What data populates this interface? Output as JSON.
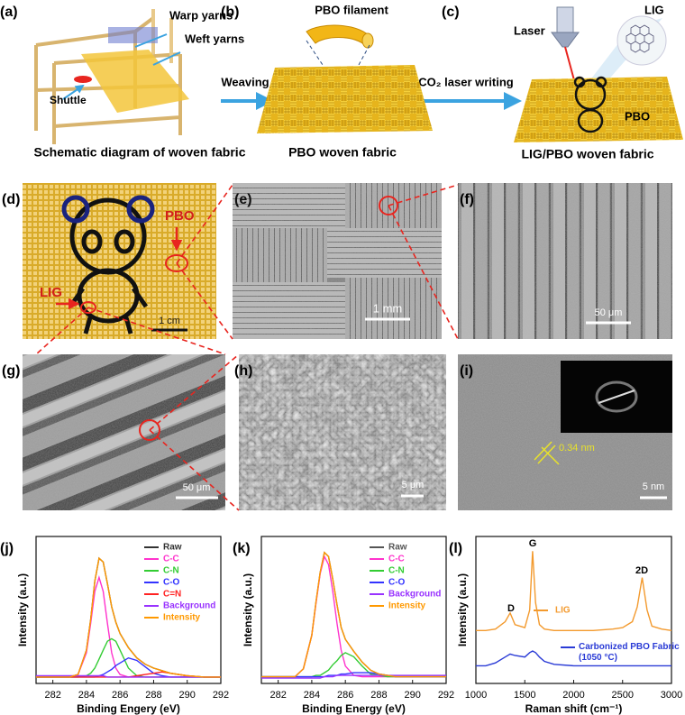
{
  "figure": {
    "a": {
      "label": "(a)",
      "warp": "Warp yarns",
      "weft": "Weft yarns",
      "shuttle": "Shuttle",
      "caption": "Schematic diagram of woven fabric"
    },
    "weaving": "Weaving",
    "b": {
      "label": "(b)",
      "filament": "PBO filament",
      "caption": "PBO woven fabric"
    },
    "laser_writing": "CO₂ laser writing",
    "c": {
      "label": "(c)",
      "laser": "Laser",
      "lig": "LIG",
      "pbo": "PBO",
      "caption": "LIG/PBO woven fabric"
    },
    "d": {
      "label": "(d)",
      "pbo": "PBO",
      "lig": "LIG",
      "scale": "1 cm"
    },
    "e": {
      "label": "(e)",
      "scale": "1 mm"
    },
    "f": {
      "label": "(f)",
      "scale": "50 μm"
    },
    "g": {
      "label": "(g)",
      "scale": "50 μm"
    },
    "h": {
      "label": "(h)",
      "scale": "5 μm"
    },
    "i": {
      "label": "(i)",
      "spacing": "0.34 nm",
      "scale": "5 nm"
    }
  },
  "chart_data": [
    {
      "type": "line",
      "label": "(j)",
      "xlabel": "Binding Engery (eV)",
      "ylabel": "Intensity (a.u.)",
      "legend": "upper right",
      "x": [
        281,
        282,
        283,
        283.5,
        284,
        284.25,
        284.5,
        284.75,
        285,
        285.25,
        285.5,
        285.75,
        286,
        286.5,
        287,
        287.5,
        288,
        288.5,
        289,
        290,
        291,
        292
      ],
      "xlim": [
        281,
        292
      ],
      "xticks": [
        282,
        284,
        286,
        288,
        290,
        292
      ],
      "ylim": [
        0,
        115
      ],
      "series": [
        {
          "name": "Raw",
          "color": "#333333",
          "values": [
            5,
            5,
            5,
            7,
            26,
            50,
            80,
            98,
            95,
            78,
            60,
            48,
            39,
            28,
            20,
            15,
            12,
            10,
            8,
            6,
            5,
            5
          ]
        },
        {
          "name": "C-C",
          "color": "#ff33cc",
          "values": [
            5,
            5,
            5,
            7,
            24,
            47,
            72,
            83,
            72,
            47,
            24,
            12,
            7,
            5,
            5,
            5,
            5,
            5,
            5,
            5,
            5,
            5
          ]
        },
        {
          "name": "C-N",
          "color": "#33cc33",
          "values": [
            5,
            5,
            5,
            5,
            6,
            8,
            12,
            19,
            26,
            33,
            35,
            33,
            26,
            12,
            6,
            5,
            5,
            5,
            5,
            5,
            5,
            5
          ]
        },
        {
          "name": "C-O",
          "color": "#3333ff",
          "values": [
            5,
            5,
            5,
            5,
            5,
            5,
            5,
            6,
            7,
            9,
            11,
            14,
            16,
            20,
            18,
            13,
            8,
            6,
            5,
            5,
            5,
            5
          ]
        },
        {
          "name": "C=N",
          "color": "#ff2222",
          "values": [
            5,
            5,
            5,
            5,
            5,
            5,
            5,
            5,
            5,
            5,
            5,
            5,
            5,
            5,
            6,
            7,
            8,
            9,
            8,
            6,
            5,
            5
          ]
        },
        {
          "name": "Background",
          "color": "#9933ff",
          "values": [
            6,
            6,
            6,
            6,
            6,
            6,
            6,
            6,
            6,
            5,
            5,
            5,
            5,
            5,
            5,
            5,
            5,
            5,
            5,
            5,
            5,
            5
          ]
        },
        {
          "name": "Intensity",
          "color": "#ff9900",
          "values": [
            5,
            5,
            5,
            7,
            26,
            50,
            80,
            98,
            95,
            78,
            60,
            48,
            39,
            28,
            20,
            15,
            12,
            10,
            8,
            6,
            5,
            5
          ]
        }
      ]
    },
    {
      "type": "line",
      "label": "(k)",
      "xlabel": "Binding Energy (eV)",
      "ylabel": "Intensity (a.u.)",
      "legend": "upper right",
      "x": [
        281,
        282,
        283,
        283.5,
        284,
        284.25,
        284.5,
        284.75,
        285,
        285.25,
        285.5,
        285.75,
        286,
        286.5,
        287,
        287.5,
        288,
        288.5,
        289,
        290,
        291,
        292
      ],
      "xlim": [
        281,
        292
      ],
      "xticks": [
        282,
        284,
        286,
        288,
        290,
        292
      ],
      "ylim": [
        0,
        110
      ],
      "series": [
        {
          "name": "Raw",
          "color": "#555555",
          "values": [
            5,
            5,
            5,
            11,
            36,
            61,
            83,
            98,
            95,
            78,
            59,
            42,
            33,
            24,
            16,
            10,
            7,
            6,
            5,
            5,
            5,
            5
          ]
        },
        {
          "name": "C-C",
          "color": "#ff33cc",
          "values": [
            5,
            5,
            5,
            11,
            36,
            60,
            82,
            95,
            89,
            69,
            45,
            25,
            13,
            6,
            5,
            5,
            5,
            5,
            5,
            5,
            5,
            5
          ]
        },
        {
          "name": "C-N",
          "color": "#33cc33",
          "values": [
            5,
            5,
            5,
            5,
            5,
            6,
            6,
            8,
            10,
            14,
            17,
            21,
            23,
            20,
            13,
            7,
            6,
            5,
            5,
            5,
            5,
            5
          ]
        },
        {
          "name": "C-O",
          "color": "#3333ff",
          "values": [
            5,
            5,
            5,
            5,
            5,
            5,
            5,
            5,
            6,
            6,
            6,
            7,
            7,
            8,
            8,
            8,
            7,
            6,
            5,
            5,
            5,
            5
          ]
        },
        {
          "name": "Background",
          "color": "#9933ff",
          "values": [
            4,
            4,
            4,
            4,
            4,
            4,
            4,
            5,
            5,
            5,
            6,
            6,
            6,
            6,
            6,
            6,
            6,
            6,
            6,
            6,
            6,
            6
          ]
        },
        {
          "name": "Intensity",
          "color": "#ff9900",
          "values": [
            5,
            5,
            5,
            11,
            36,
            61,
            83,
            98,
            95,
            78,
            59,
            42,
            33,
            24,
            16,
            10,
            7,
            6,
            5,
            5,
            5,
            5
          ]
        }
      ]
    },
    {
      "type": "line",
      "label": "(l)",
      "xlabel": "Raman shift (cm⁻¹)",
      "ylabel": "Intensity (a.u.)",
      "legend": "inline",
      "annotations": [
        "D",
        "G",
        "2D"
      ],
      "x": [
        1000,
        1100,
        1200,
        1300,
        1350,
        1400,
        1500,
        1550,
        1580,
        1610,
        1650,
        1700,
        1800,
        2000,
        2200,
        2400,
        2500,
        2600,
        2650,
        2700,
        2750,
        2800,
        2900,
        3000
      ],
      "xlim": [
        1000,
        3000
      ],
      "xticks": [
        1000,
        1500,
        2000,
        2500,
        3000
      ],
      "ylim": [
        0,
        100
      ],
      "series": [
        {
          "name": "LIG",
          "color": "#f39a2e",
          "values": [
            36,
            36,
            37,
            42,
            48,
            40,
            38,
            50,
            90,
            55,
            40,
            37,
            36,
            36,
            36,
            37,
            38,
            42,
            52,
            72,
            50,
            39,
            37,
            36
          ]
        },
        {
          "name": "Carbonized PBO Fabric (1050 °C)",
          "color": "#2a3bd6",
          "values": [
            12,
            12,
            14,
            18,
            20,
            19,
            18,
            21,
            22,
            21,
            18,
            15,
            13,
            12,
            12,
            12,
            12,
            12,
            12,
            12,
            12,
            12,
            12,
            12
          ]
        }
      ]
    }
  ]
}
